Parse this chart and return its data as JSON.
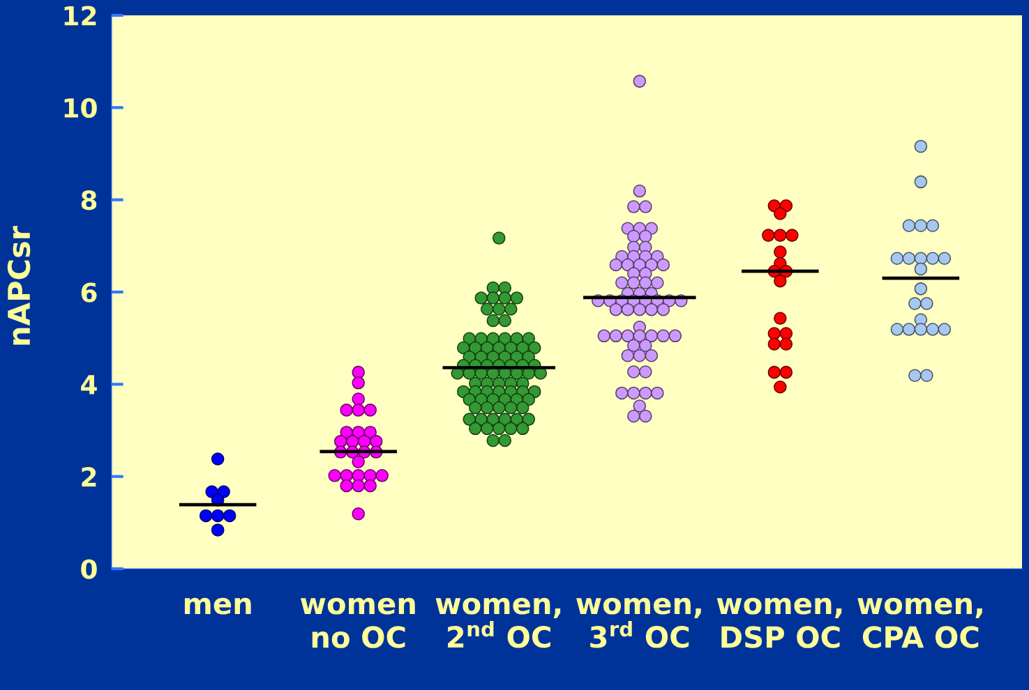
{
  "chart_data": {
    "type": "scatter",
    "ylabel": "nAPCsr",
    "marker": "circle",
    "grid": false,
    "categories": [
      "men",
      "women\nno OC",
      "women,\n2$^{nd}$ OC",
      "women,\n3$^{rd}$ OC",
      "women,\nDSP OC",
      "women,\nCPA OC"
    ],
    "ylim": [
      0,
      12
    ],
    "yticks": [
      0,
      2,
      4,
      6,
      8,
      10,
      12
    ],
    "ref_lines": [
      {
        "axis": "y",
        "value": 1.39,
        "color": "#000000"
      },
      {
        "axis": "y",
        "value": 2.54,
        "color": "#000000"
      },
      {
        "axis": "y",
        "value": 4.36,
        "color": "#000000"
      },
      {
        "axis": "y",
        "value": 5.88,
        "color": "#000000"
      },
      {
        "axis": "y",
        "value": 6.45,
        "color": "#000000"
      },
      {
        "axis": "y",
        "value": 6.3,
        "color": "#000000"
      }
    ],
    "series": [
      {
        "color": "#0000ff",
        "x": [
          "men",
          "men",
          "men",
          "men",
          "men",
          "men",
          "men",
          "men"
        ],
        "values": [
          2.38,
          1.67,
          1.67,
          1.49,
          1.15,
          1.15,
          1.15,
          0.84
        ]
      },
      {
        "color": "#ff00ff",
        "x": [
          "women\nno OC",
          "women\nno OC",
          "women\nno OC",
          "women\nno OC",
          "women\nno OC",
          "women\nno OC",
          "women\nno OC",
          "women\nno OC",
          "women\nno OC",
          "women\nno OC",
          "women\nno OC",
          "women\nno OC",
          "women\nno OC",
          "women\nno OC",
          "women\nno OC",
          "women\nno OC",
          "women\nno OC",
          "women\nno OC",
          "women\nno OC",
          "women\nno OC",
          "women\nno OC",
          "women\nno OC",
          "women\nno OC",
          "women\nno OC",
          "women\nno OC",
          "women\nno OC",
          "women\nno OC"
        ],
        "values": [
          4.26,
          4.03,
          3.68,
          3.44,
          3.44,
          3.44,
          2.96,
          2.96,
          2.96,
          2.76,
          2.76,
          2.76,
          2.76,
          2.53,
          2.53,
          2.53,
          2.53,
          2.32,
          2.02,
          2.02,
          2.02,
          2.02,
          2.02,
          1.8,
          1.8,
          1.8,
          1.19
        ]
      },
      {
        "color": "#339933",
        "x": [
          "women,\n2$^{nd}$ OC",
          "women,\n2$^{nd}$ OC",
          "women,\n2$^{nd}$ OC",
          "women,\n2$^{nd}$ OC",
          "women,\n2$^{nd}$ OC",
          "women,\n2$^{nd}$ OC",
          "women,\n2$^{nd}$ OC",
          "women,\n2$^{nd}$ OC",
          "women,\n2$^{nd}$ OC",
          "women,\n2$^{nd}$ OC",
          "women,\n2$^{nd}$ OC",
          "women,\n2$^{nd}$ OC",
          "women,\n2$^{nd}$ OC",
          "women,\n2$^{nd}$ OC",
          "women,\n2$^{nd}$ OC",
          "women,\n2$^{nd}$ OC",
          "women,\n2$^{nd}$ OC",
          "women,\n2$^{nd}$ OC",
          "women,\n2$^{nd}$ OC",
          "women,\n2$^{nd}$ OC",
          "women,\n2$^{nd}$ OC",
          "women,\n2$^{nd}$ OC",
          "women,\n2$^{nd}$ OC",
          "women,\n2$^{nd}$ OC",
          "women,\n2$^{nd}$ OC",
          "women,\n2$^{nd}$ OC",
          "women,\n2$^{nd}$ OC",
          "women,\n2$^{nd}$ OC",
          "women,\n2$^{nd}$ OC",
          "women,\n2$^{nd}$ OC",
          "women,\n2$^{nd}$ OC",
          "women,\n2$^{nd}$ OC",
          "women,\n2$^{nd}$ OC",
          "women,\n2$^{nd}$ OC",
          "women,\n2$^{nd}$ OC",
          "women,\n2$^{nd}$ OC",
          "women,\n2$^{nd}$ OC",
          "women,\n2$^{nd}$ OC",
          "women,\n2$^{nd}$ OC",
          "women,\n2$^{nd}$ OC",
          "women,\n2$^{nd}$ OC",
          "women,\n2$^{nd}$ OC",
          "women,\n2$^{nd}$ OC",
          "women,\n2$^{nd}$ OC",
          "women,\n2$^{nd}$ OC",
          "women,\n2$^{nd}$ OC",
          "women,\n2$^{nd}$ OC",
          "women,\n2$^{nd}$ OC",
          "women,\n2$^{nd}$ OC",
          "women,\n2$^{nd}$ OC",
          "women,\n2$^{nd}$ OC",
          "women,\n2$^{nd}$ OC",
          "women,\n2$^{nd}$ OC",
          "women,\n2$^{nd}$ OC",
          "women,\n2$^{nd}$ OC",
          "women,\n2$^{nd}$ OC",
          "women,\n2$^{nd}$ OC",
          "women,\n2$^{nd}$ OC",
          "women,\n2$^{nd}$ OC",
          "women,\n2$^{nd}$ OC",
          "women,\n2$^{nd}$ OC",
          "women,\n2$^{nd}$ OC",
          "women,\n2$^{nd}$ OC",
          "women,\n2$^{nd}$ OC",
          "women,\n2$^{nd}$ OC",
          "women,\n2$^{nd}$ OC",
          "women,\n2$^{nd}$ OC",
          "women,\n2$^{nd}$ OC",
          "women,\n2$^{nd}$ OC",
          "women,\n2$^{nd}$ OC",
          "women,\n2$^{nd}$ OC",
          "women,\n2$^{nd}$ OC",
          "women,\n2$^{nd}$ OC",
          "women,\n2$^{nd}$ OC",
          "women,\n2$^{nd}$ OC",
          "women,\n2$^{nd}$ OC",
          "women,\n2$^{nd}$ OC",
          "women,\n2$^{nd}$ OC",
          "women,\n2$^{nd}$ OC",
          "women,\n2$^{nd}$ OC",
          "women,\n2$^{nd}$ OC",
          "women,\n2$^{nd}$ OC"
        ],
        "values": [
          7.17,
          6.09,
          6.09,
          5.87,
          5.87,
          5.87,
          5.87,
          5.63,
          5.63,
          5.63,
          5.38,
          5.38,
          4.99,
          4.99,
          4.99,
          4.99,
          4.99,
          4.99,
          4.79,
          4.79,
          4.79,
          4.79,
          4.79,
          4.79,
          4.79,
          4.59,
          4.59,
          4.59,
          4.59,
          4.59,
          4.59,
          4.41,
          4.41,
          4.41,
          4.41,
          4.41,
          4.41,
          4.41,
          4.24,
          4.24,
          4.24,
          4.24,
          4.24,
          4.24,
          4.24,
          4.24,
          4.02,
          4.02,
          4.02,
          4.02,
          4.02,
          3.84,
          3.84,
          3.84,
          3.84,
          3.84,
          3.84,
          3.84,
          3.67,
          3.67,
          3.67,
          3.67,
          3.67,
          3.67,
          3.49,
          3.49,
          3.49,
          3.49,
          3.49,
          3.24,
          3.24,
          3.24,
          3.24,
          3.24,
          3.24,
          3.04,
          3.04,
          3.04,
          3.04,
          3.04,
          2.78,
          2.78
        ]
      },
      {
        "color": "#cc99ff",
        "x": [
          "women,\n3$^{rd}$ OC",
          "women,\n3$^{rd}$ OC",
          "women,\n3$^{rd}$ OC",
          "women,\n3$^{rd}$ OC",
          "women,\n3$^{rd}$ OC",
          "women,\n3$^{rd}$ OC",
          "women,\n3$^{rd}$ OC",
          "women,\n3$^{rd}$ OC",
          "women,\n3$^{rd}$ OC",
          "women,\n3$^{rd}$ OC",
          "women,\n3$^{rd}$ OC",
          "women,\n3$^{rd}$ OC",
          "women,\n3$^{rd}$ OC",
          "women,\n3$^{rd}$ OC",
          "women,\n3$^{rd}$ OC",
          "women,\n3$^{rd}$ OC",
          "women,\n3$^{rd}$ OC",
          "women,\n3$^{rd}$ OC",
          "women,\n3$^{rd}$ OC",
          "women,\n3$^{rd}$ OC",
          "women,\n3$^{rd}$ OC",
          "women,\n3$^{rd}$ OC",
          "women,\n3$^{rd}$ OC",
          "women,\n3$^{rd}$ OC",
          "women,\n3$^{rd}$ OC",
          "women,\n3$^{rd}$ OC",
          "women,\n3$^{rd}$ OC",
          "women,\n3$^{rd}$ OC",
          "women,\n3$^{rd}$ OC",
          "women,\n3$^{rd}$ OC",
          "women,\n3$^{rd}$ OC",
          "women,\n3$^{rd}$ OC",
          "women,\n3$^{rd}$ OC",
          "women,\n3$^{rd}$ OC",
          "women,\n3$^{rd}$ OC",
          "women,\n3$^{rd}$ OC",
          "women,\n3$^{rd}$ OC",
          "women,\n3$^{rd}$ OC",
          "women,\n3$^{rd}$ OC",
          "women,\n3$^{rd}$ OC",
          "women,\n3$^{rd}$ OC",
          "women,\n3$^{rd}$ OC",
          "women,\n3$^{rd}$ OC",
          "women,\n3$^{rd}$ OC",
          "women,\n3$^{rd}$ OC",
          "women,\n3$^{rd}$ OC",
          "women,\n3$^{rd}$ OC",
          "women,\n3$^{rd}$ OC",
          "women,\n3$^{rd}$ OC",
          "women,\n3$^{rd}$ OC",
          "women,\n3$^{rd}$ OC",
          "women,\n3$^{rd}$ OC",
          "women,\n3$^{rd}$ OC",
          "women,\n3$^{rd}$ OC",
          "women,\n3$^{rd}$ OC",
          "women,\n3$^{rd}$ OC",
          "women,\n3$^{rd}$ OC",
          "women,\n3$^{rd}$ OC",
          "women,\n3$^{rd}$ OC",
          "women,\n3$^{rd}$ OC",
          "women,\n3$^{rd}$ OC",
          "women,\n3$^{rd}$ OC",
          "women,\n3$^{rd}$ OC",
          "women,\n3$^{rd}$ OC"
        ],
        "values": [
          10.57,
          8.19,
          7.85,
          7.85,
          7.38,
          7.38,
          7.38,
          7.21,
          7.21,
          6.97,
          6.97,
          6.77,
          6.77,
          6.77,
          6.77,
          6.59,
          6.59,
          6.59,
          6.59,
          6.59,
          6.4,
          6.4,
          6.2,
          6.2,
          6.2,
          6.2,
          5.97,
          5.97,
          5.97,
          5.81,
          5.81,
          5.81,
          5.81,
          5.81,
          5.81,
          5.81,
          5.81,
          5.62,
          5.62,
          5.62,
          5.62,
          5.62,
          5.24,
          5.05,
          5.05,
          5.05,
          5.05,
          5.05,
          5.05,
          5.05,
          4.84,
          4.84,
          4.62,
          4.62,
          4.62,
          4.27,
          4.27,
          3.81,
          3.81,
          3.81,
          3.81,
          3.53,
          3.31,
          3.31
        ]
      },
      {
        "color": "#ff0000",
        "x": [
          "women,\nDSP OC",
          "women,\nDSP OC",
          "women,\nDSP OC",
          "women,\nDSP OC",
          "women,\nDSP OC",
          "women,\nDSP OC",
          "women,\nDSP OC",
          "women,\nDSP OC",
          "women,\nDSP OC",
          "women,\nDSP OC",
          "women,\nDSP OC",
          "women,\nDSP OC",
          "women,\nDSP OC",
          "women,\nDSP OC",
          "women,\nDSP OC",
          "women,\nDSP OC",
          "women,\nDSP OC",
          "women,\nDSP OC",
          "women,\nDSP OC"
        ],
        "values": [
          7.87,
          7.87,
          7.7,
          7.23,
          7.23,
          7.23,
          6.87,
          6.62,
          6.45,
          6.45,
          6.24,
          5.43,
          5.1,
          5.1,
          4.87,
          4.87,
          4.26,
          4.26,
          3.94
        ]
      },
      {
        "color": "#a6c8f0",
        "x": [
          "women,\nCPA OC",
          "women,\nCPA OC",
          "women,\nCPA OC",
          "women,\nCPA OC",
          "women,\nCPA OC",
          "women,\nCPA OC",
          "women,\nCPA OC",
          "women,\nCPA OC",
          "women,\nCPA OC",
          "women,\nCPA OC",
          "women,\nCPA OC",
          "women,\nCPA OC",
          "women,\nCPA OC",
          "women,\nCPA OC",
          "women,\nCPA OC",
          "women,\nCPA OC",
          "women,\nCPA OC",
          "women,\nCPA OC",
          "women,\nCPA OC",
          "women,\nCPA OC",
          "women,\nCPA OC",
          "women,\nCPA OC"
        ],
        "values": [
          9.16,
          8.39,
          7.44,
          7.44,
          7.44,
          6.73,
          6.73,
          6.73,
          6.73,
          6.73,
          6.5,
          6.07,
          5.75,
          5.75,
          5.4,
          5.19,
          5.19,
          5.19,
          5.19,
          5.19,
          4.19,
          4.19
        ]
      }
    ]
  }
}
